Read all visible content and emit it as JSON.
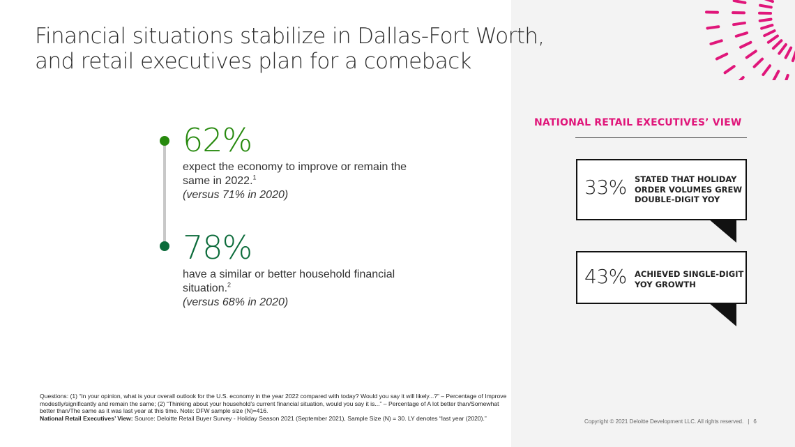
{
  "title": {
    "line1": "Financial situations stabilize in Dallas-Fort Worth,",
    "line2": "and retail executives plan for a comeback"
  },
  "stats": [
    {
      "value": "62%",
      "description": "expect the economy to improve or remain the same in 2022.",
      "footnote_ref": "1",
      "comparison": "(versus 71% in 2020)"
    },
    {
      "value": "78%",
      "description": "have a similar or better household financial situation.",
      "footnote_ref": "2",
      "comparison": "(versus 68% in 2020)"
    }
  ],
  "national_view": {
    "heading": "NATIONAL RETAIL EXECUTIVES’ VIEW",
    "callouts": [
      {
        "value": "33%",
        "label": "STATED THAT HOLIDAY ORDER VOLUMES GREW DOUBLE-DIGIT YoY"
      },
      {
        "value": "43%",
        "label": "ACHIEVED SINGLE-DIGIT YoY GROWTH"
      }
    ]
  },
  "footnote": {
    "questions": "Questions:  (1) “In your opinion, what is your overall outlook for the U.S. economy in the year 2022 compared with today? Would you say it will likely...?” – Percentage of Improve modestly/significantly and remain the same; (2) “Thinking about your household’s current financial situation, would you say it is...” – Percentage of A lot better than/Somewhat better than/The same as it was last year at this time. Note: DFW sample size (N)=416.",
    "source_label": "National Retail Executives’ View:",
    "source_text": "Source: Deloitte Retail Buyer Survey - Holiday Season 2021 (September 2021), Sample Size (N) = 30. LY denotes “last year (2020).”"
  },
  "copyright": "Copyright © 2021 Deloitte Development LLC. All rights reserved.",
  "page_number": "6",
  "colors": {
    "green_primary": "#26890d",
    "green_dark": "#0b6b3a",
    "magenta": "#e0167a",
    "panel_gray": "#f3f3f3"
  }
}
